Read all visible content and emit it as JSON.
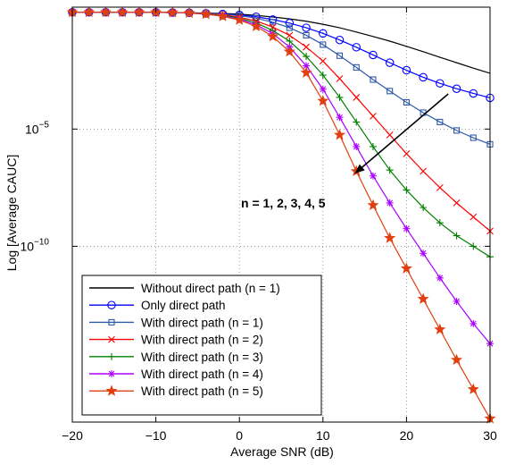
{
  "chart_data": {
    "type": "line",
    "xlabel": "Average SNR (dB)",
    "ylabel": "Log [Average CAUC]",
    "xlim": [
      -20,
      30
    ],
    "ylim_log10": [
      -17.5,
      0.2
    ],
    "y_scale": "log",
    "grid": true,
    "legend_position": "bottom-left",
    "x_ticks": [
      -20,
      -10,
      0,
      10,
      20,
      30
    ],
    "x_tick_labels": [
      "−20",
      "−10",
      "0",
      "10",
      "20",
      "30"
    ],
    "y_ticks": [
      {
        "value_log10": -5,
        "base": "10",
        "exp": "−5"
      },
      {
        "value_log10": -10,
        "base": "10",
        "exp": "−10"
      }
    ],
    "annotation": {
      "text": "n = 1, 2, 3, 4, 5",
      "arrow_from": [
        25,
        -3.5
      ],
      "arrow_to": [
        13.8,
        -6.9
      ]
    },
    "series": [
      {
        "name": "Without direct path (n = 1)",
        "color": "#000000",
        "marker": "none",
        "x": [
          -20,
          -18,
          -16,
          -14,
          -12,
          -10,
          -8,
          -6,
          -4,
          -2,
          0,
          2,
          4,
          6,
          8,
          10,
          12,
          14,
          16,
          18,
          20,
          22,
          24,
          26,
          28,
          30
        ],
        "log10y": [
          -0.02,
          -0.02,
          -0.02,
          -0.02,
          -0.02,
          -0.02,
          -0.03,
          -0.04,
          -0.05,
          -0.07,
          -0.1,
          -0.15,
          -0.22,
          -0.3,
          -0.4,
          -0.53,
          -0.68,
          -0.86,
          -1.05,
          -1.25,
          -1.47,
          -1.7,
          -1.94,
          -2.17,
          -2.4,
          -2.62
        ]
      },
      {
        "name": "Only direct path",
        "color": "#0000ff",
        "marker": "circle",
        "x": [
          -20,
          -18,
          -16,
          -14,
          -12,
          -10,
          -8,
          -6,
          -4,
          -2,
          0,
          2,
          4,
          6,
          8,
          10,
          12,
          14,
          16,
          18,
          20,
          22,
          24,
          26,
          28,
          30
        ],
        "log10y": [
          -0.02,
          -0.02,
          -0.02,
          -0.02,
          -0.02,
          -0.02,
          -0.03,
          -0.04,
          -0.06,
          -0.09,
          -0.13,
          -0.21,
          -0.33,
          -0.48,
          -0.68,
          -0.92,
          -1.2,
          -1.51,
          -1.84,
          -2.17,
          -2.49,
          -2.79,
          -3.05,
          -3.28,
          -3.48,
          -3.67
        ]
      },
      {
        "name": "With direct path (n = 1)",
        "color": "#2f5aa8",
        "marker": "square",
        "x": [
          -20,
          -18,
          -16,
          -14,
          -12,
          -10,
          -8,
          -6,
          -4,
          -2,
          0,
          2,
          4,
          6,
          8,
          10,
          12,
          14,
          16,
          18,
          20,
          22,
          24,
          26,
          28,
          30
        ],
        "log10y": [
          -0.02,
          -0.02,
          -0.02,
          -0.02,
          -0.02,
          -0.02,
          -0.03,
          -0.04,
          -0.06,
          -0.1,
          -0.16,
          -0.27,
          -0.44,
          -0.68,
          -1.0,
          -1.4,
          -1.87,
          -2.37,
          -2.89,
          -3.38,
          -3.86,
          -4.3,
          -4.7,
          -5.06,
          -5.37,
          -5.65
        ]
      },
      {
        "name": "With direct path (n = 2)",
        "color": "#ff0000",
        "marker": "x",
        "x": [
          -20,
          -18,
          -16,
          -14,
          -12,
          -10,
          -8,
          -6,
          -4,
          -2,
          0,
          2,
          4,
          6,
          8,
          10,
          12,
          14,
          16,
          18,
          20,
          22,
          24,
          26,
          28,
          30
        ],
        "log10y": [
          -0.02,
          -0.02,
          -0.02,
          -0.02,
          -0.02,
          -0.02,
          -0.03,
          -0.05,
          -0.08,
          -0.13,
          -0.23,
          -0.39,
          -0.65,
          -1.0,
          -1.5,
          -2.1,
          -2.85,
          -3.65,
          -4.45,
          -5.25,
          -6.05,
          -6.8,
          -7.5,
          -8.15,
          -8.75,
          -9.35
        ]
      },
      {
        "name": "With direct path (n = 3)",
        "color": "#008000",
        "marker": "plus",
        "x": [
          -20,
          -18,
          -16,
          -14,
          -12,
          -10,
          -8,
          -6,
          -4,
          -2,
          0,
          2,
          4,
          6,
          8,
          10,
          12,
          14,
          16,
          18,
          20,
          22,
          24,
          26,
          28,
          30
        ],
        "log10y": [
          -0.02,
          -0.02,
          -0.02,
          -0.02,
          -0.02,
          -0.02,
          -0.03,
          -0.05,
          -0.09,
          -0.15,
          -0.27,
          -0.47,
          -0.8,
          -1.25,
          -1.9,
          -2.7,
          -3.65,
          -4.7,
          -5.75,
          -6.75,
          -7.6,
          -8.35,
          -9.0,
          -9.55,
          -10.0,
          -10.45
        ]
      },
      {
        "name": "With direct path (n = 4)",
        "color": "#aa00ff",
        "marker": "asterisk",
        "x": [
          -20,
          -18,
          -16,
          -14,
          -12,
          -10,
          -8,
          -6,
          -4,
          -2,
          0,
          2,
          4,
          6,
          8,
          10,
          12,
          14,
          16,
          18,
          20,
          22,
          24,
          26,
          28,
          30
        ],
        "log10y": [
          -0.02,
          -0.02,
          -0.02,
          -0.02,
          -0.02,
          -0.02,
          -0.03,
          -0.05,
          -0.1,
          -0.17,
          -0.31,
          -0.55,
          -0.93,
          -1.5,
          -2.3,
          -3.3,
          -4.5,
          -5.75,
          -7.0,
          -8.15,
          -9.25,
          -10.3,
          -11.35,
          -12.35,
          -13.3,
          -14.15
        ]
      },
      {
        "name": "With direct path (n = 5)",
        "color": "#e04010",
        "marker": "star",
        "x": [
          -20,
          -18,
          -16,
          -14,
          -12,
          -10,
          -8,
          -6,
          -4,
          -2,
          0,
          2,
          4,
          6,
          8,
          10,
          12,
          14,
          16,
          18,
          20,
          22,
          24,
          26,
          28,
          30
        ],
        "log10y": [
          -0.02,
          -0.02,
          -0.02,
          -0.02,
          -0.02,
          -0.02,
          -0.03,
          -0.05,
          -0.1,
          -0.19,
          -0.35,
          -0.62,
          -1.05,
          -1.7,
          -2.6,
          -3.8,
          -5.25,
          -6.8,
          -8.25,
          -9.65,
          -10.95,
          -12.25,
          -13.55,
          -14.85,
          -16.1,
          -17.35
        ]
      }
    ]
  }
}
